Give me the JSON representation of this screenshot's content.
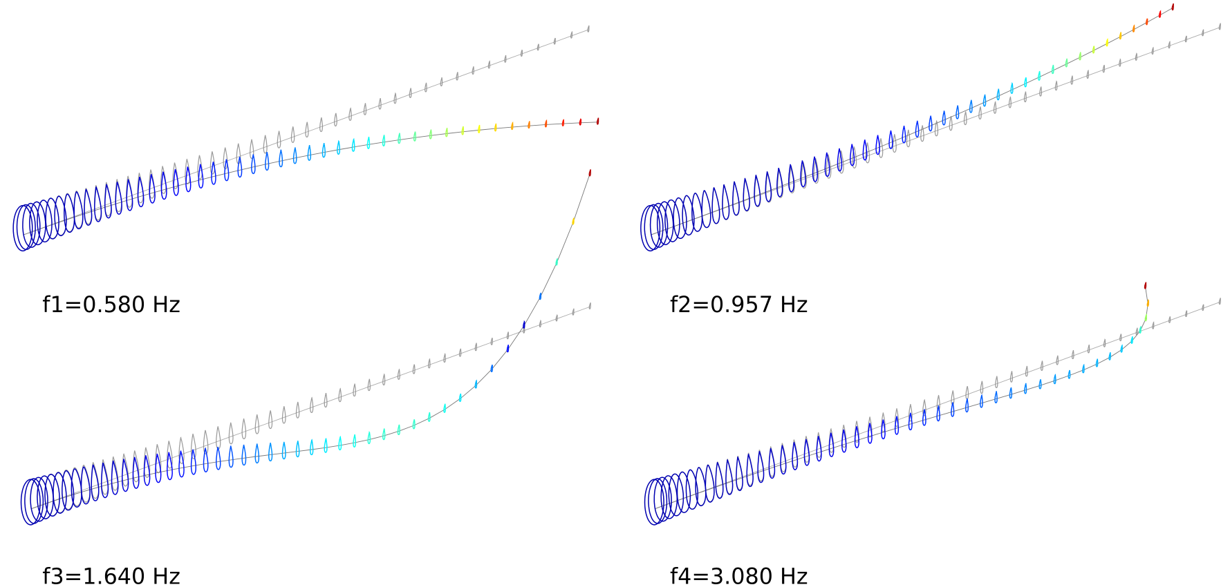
{
  "panels": [
    {
      "label": "f1=0.580 Hz"
    },
    {
      "label": "f2=0.957 Hz"
    },
    {
      "label": "f3=1.640 Hz"
    },
    {
      "label": "f4=3.080 Hz"
    }
  ]
}
